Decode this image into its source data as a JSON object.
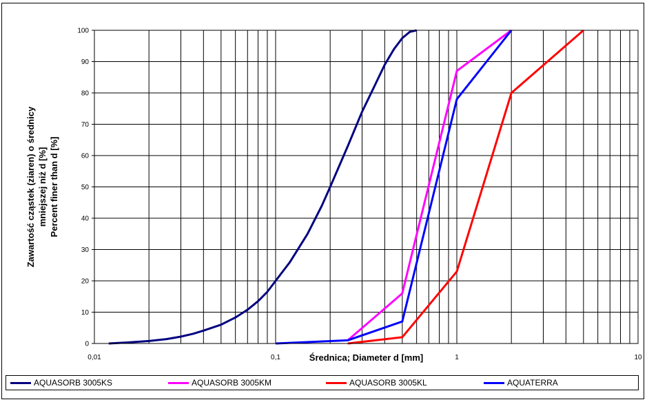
{
  "chart_data": {
    "type": "line",
    "xscale": "log",
    "xlim": [
      0.01,
      10
    ],
    "ylim": [
      0,
      100
    ],
    "grid": true,
    "legend_position": "bottom",
    "xlabel": "Średnica; Diameter d [mm]",
    "ylabel_lines": [
      "Zawartość cząstek (ziaren) o średnicy",
      "mniejszej niż d [%]",
      "Percent finer than d [%]"
    ],
    "x_ticks": [
      {
        "value": 0.01,
        "label": "0,01"
      },
      {
        "value": 0.1,
        "label": "0,1"
      },
      {
        "value": 1,
        "label": "1"
      },
      {
        "value": 10,
        "label": "10"
      }
    ],
    "y_ticks": [
      0,
      10,
      20,
      30,
      40,
      50,
      60,
      70,
      80,
      90,
      100
    ],
    "series": [
      {
        "name": "AQUASORB 3005KS",
        "color": "#000080",
        "points": [
          [
            0.012,
            0
          ],
          [
            0.015,
            0.3
          ],
          [
            0.02,
            0.8
          ],
          [
            0.025,
            1.4
          ],
          [
            0.03,
            2.2
          ],
          [
            0.035,
            3.1
          ],
          [
            0.04,
            4.1
          ],
          [
            0.05,
            6
          ],
          [
            0.06,
            8.3
          ],
          [
            0.07,
            10.8
          ],
          [
            0.08,
            13.5
          ],
          [
            0.09,
            16.5
          ],
          [
            0.1,
            20
          ],
          [
            0.12,
            26
          ],
          [
            0.15,
            35
          ],
          [
            0.18,
            44
          ],
          [
            0.2,
            50
          ],
          [
            0.25,
            63
          ],
          [
            0.3,
            74
          ],
          [
            0.35,
            82
          ],
          [
            0.4,
            89
          ],
          [
            0.45,
            94
          ],
          [
            0.5,
            97.5
          ],
          [
            0.55,
            99.5
          ],
          [
            0.6,
            100
          ]
        ]
      },
      {
        "name": "AQUASORB 3005KM",
        "color": "#FF00FF",
        "points": [
          [
            0.25,
            1
          ],
          [
            0.5,
            16
          ],
          [
            1,
            87
          ],
          [
            2,
            100
          ]
        ]
      },
      {
        "name": "AQUASORB 3005KL",
        "color": "#FF0000",
        "points": [
          [
            0.25,
            0
          ],
          [
            0.5,
            2
          ],
          [
            1,
            23
          ],
          [
            2,
            80
          ],
          [
            5,
            100
          ]
        ]
      },
      {
        "name": "AQUATERRA",
        "color": "#0000FF",
        "points": [
          [
            0.1,
            0
          ],
          [
            0.25,
            1
          ],
          [
            0.5,
            7
          ],
          [
            1,
            78
          ],
          [
            2,
            100
          ]
        ]
      }
    ]
  }
}
